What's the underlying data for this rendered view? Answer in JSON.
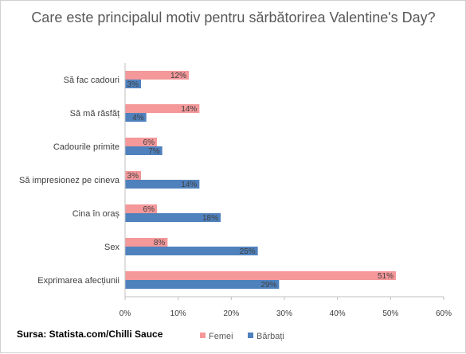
{
  "chart_data": {
    "type": "bar",
    "orientation": "horizontal",
    "title": "Care este principalul motiv pentru sărbătorirea Valentine's Day?",
    "categories": [
      "Să fac cadouri",
      "Să mă răsfăț",
      "Cadourile primite",
      "Să impresionez pe cineva",
      "Cina în oraș",
      "Sex",
      "Exprimarea afecțiunii"
    ],
    "series": [
      {
        "name": "Femei",
        "color": "#f4989a",
        "values": [
          12,
          14,
          6,
          3,
          6,
          8,
          51
        ]
      },
      {
        "name": "Bărbați",
        "color": "#4f81bd",
        "values": [
          3,
          4,
          7,
          14,
          18,
          25,
          29
        ]
      }
    ],
    "xlim": [
      0,
      60
    ],
    "xticks": [
      "0%",
      "10%",
      "20%",
      "30%",
      "40%",
      "50%",
      "60%"
    ],
    "value_suffix": "%",
    "grid": false,
    "legend_position": "bottom"
  },
  "source": "Sursa: Statista.com/Chilli Sauce"
}
